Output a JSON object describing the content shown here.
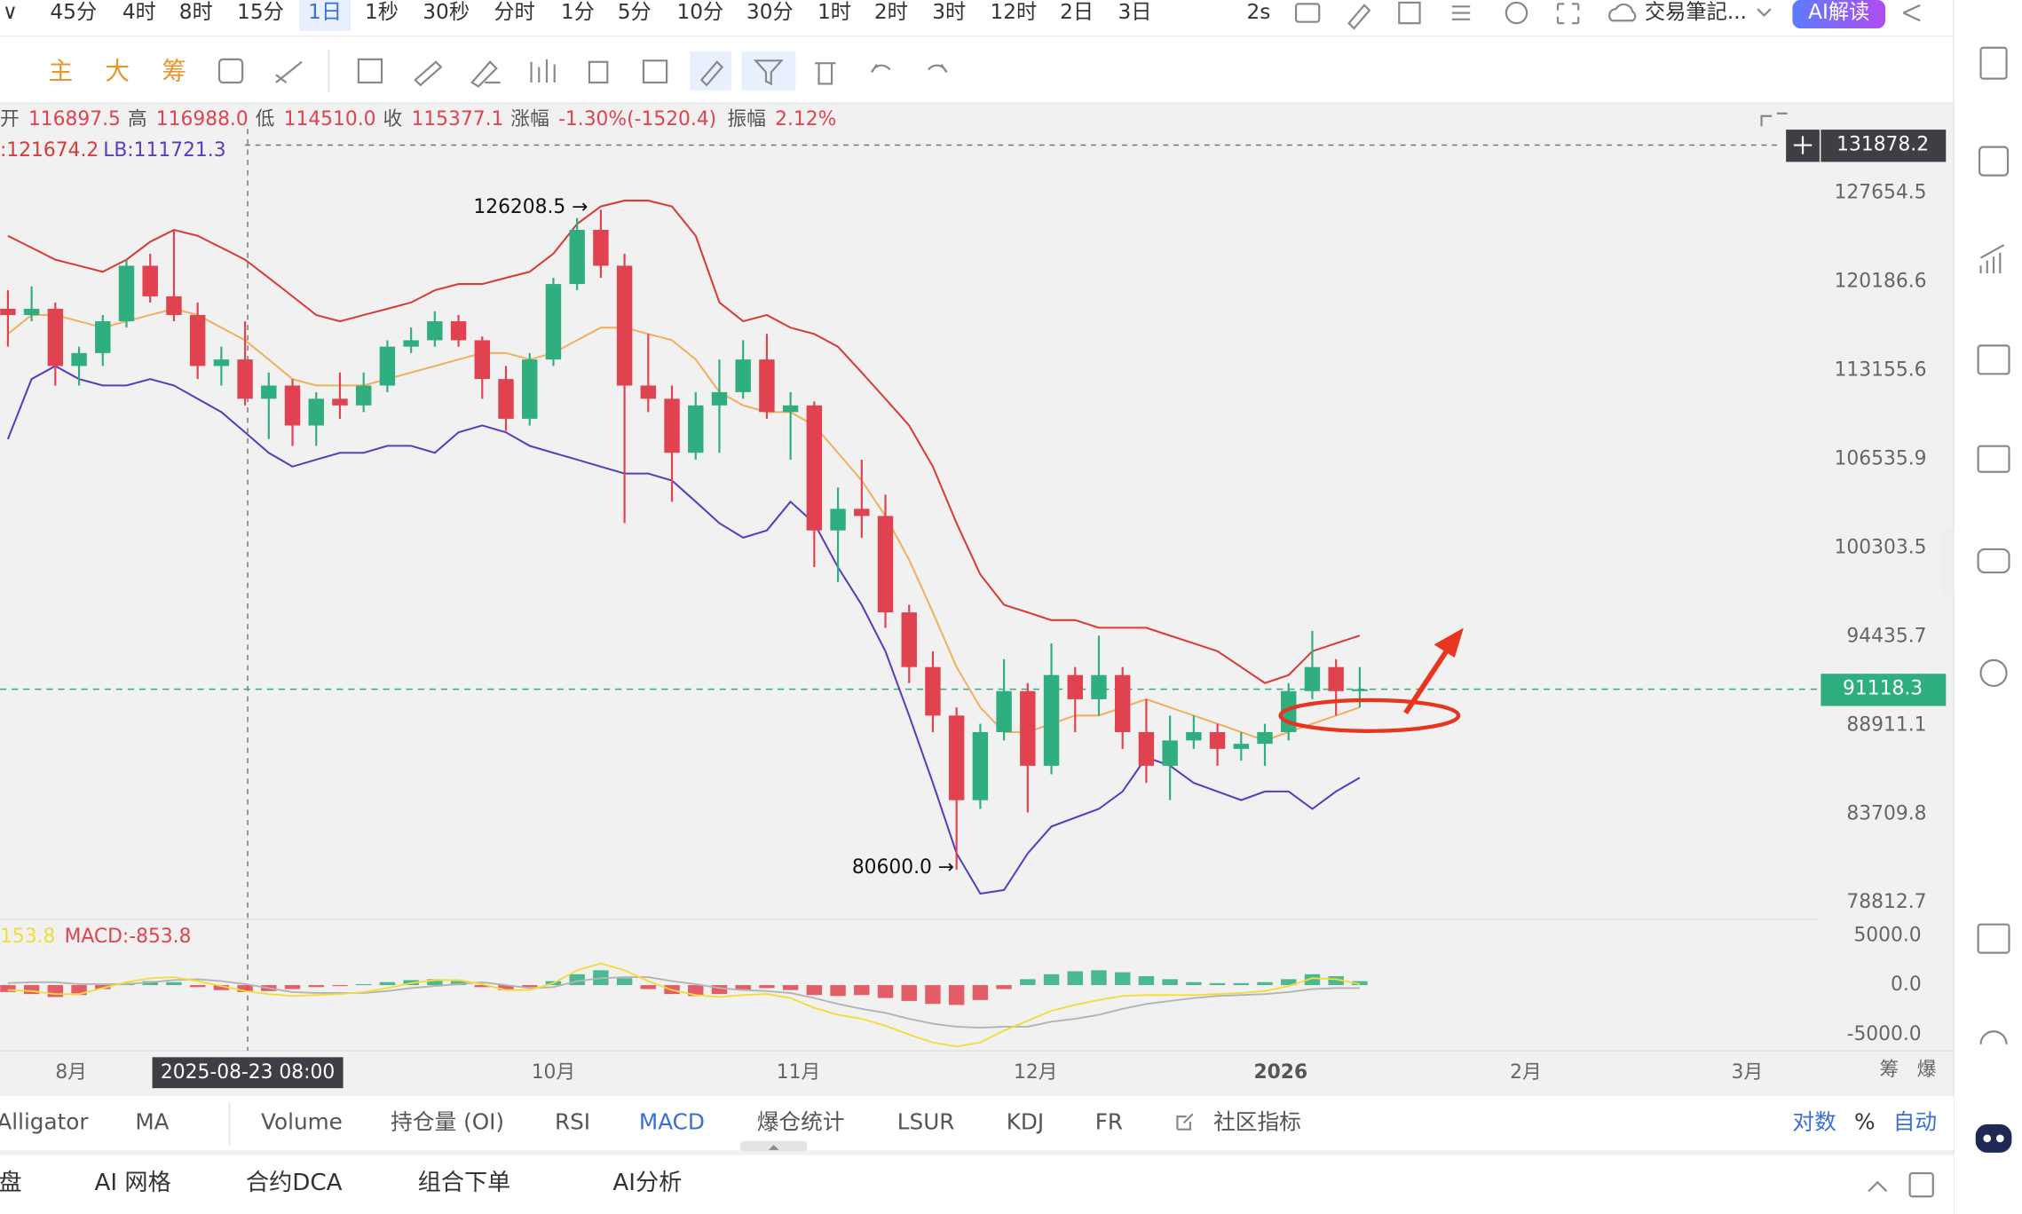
{
  "toolbar": {
    "intervals": [
      "45分",
      "4时",
      "8时",
      "15分",
      "1日",
      "1秒",
      "30秒",
      "分时",
      "1分",
      "5分",
      "10分",
      "30分",
      "1时",
      "2时",
      "3时",
      "12时",
      "2日",
      "3日"
    ],
    "refresh": "2s",
    "notes": "交易筆記...",
    "ai_button": "AI解读",
    "tools": [
      "主",
      "大",
      "筹"
    ]
  },
  "info": {
    "open_label": "开",
    "open": "116897.5",
    "high_label": "高",
    "high": "116988.0",
    "low_label": "低",
    "low": "114510.0",
    "close_label": "收",
    "close": "115377.1",
    "change_label": "涨幅",
    "change": "-1.30%(-1520.4)",
    "amp_label": "振幅",
    "amp": "2.12%",
    "ub": ":121674.2",
    "lb": "LB:111721.3"
  },
  "chart_data": {
    "type": "candlestick",
    "log_scale": true,
    "grid": false,
    "ylim": [
      78000,
      135100
    ],
    "yticks": [
      127654.5,
      120186.6,
      113155.6,
      106535.9,
      100303.5,
      94435.7,
      88911.1,
      83709.8,
      78812.7
    ],
    "xlim": [
      "2025-07-23",
      "2026-03-10"
    ],
    "xticks": [
      {
        "value": "2025-08-01",
        "label": "8月"
      },
      {
        "value": "2025-10-01",
        "label": "10月"
      },
      {
        "value": "2025-11-01",
        "label": "11月"
      },
      {
        "value": "2025-12-01",
        "label": "12月"
      },
      {
        "value": "2026-01-01",
        "label": "2026"
      },
      {
        "value": "2026-02-01",
        "label": "2月"
      },
      {
        "value": "2026-03-01",
        "label": "3月"
      }
    ],
    "up_color": "#2fae7f",
    "down_color": "#e0434f",
    "candles": {
      "x": [
        "2025-07-24",
        "2025-07-27",
        "2025-07-30",
        "2025-08-02",
        "2025-08-05",
        "2025-08-08",
        "2025-08-11",
        "2025-08-14",
        "2025-08-17",
        "2025-08-20",
        "2025-08-23",
        "2025-08-26",
        "2025-08-29",
        "2025-09-01",
        "2025-09-04",
        "2025-09-07",
        "2025-09-10",
        "2025-09-13",
        "2025-09-16",
        "2025-09-19",
        "2025-09-22",
        "2025-09-25",
        "2025-09-28",
        "2025-10-01",
        "2025-10-04",
        "2025-10-07",
        "2025-10-10",
        "2025-10-13",
        "2025-10-16",
        "2025-10-19",
        "2025-10-22",
        "2025-10-25",
        "2025-10-28",
        "2025-10-31",
        "2025-11-03",
        "2025-11-06",
        "2025-11-09",
        "2025-11-12",
        "2025-11-15",
        "2025-11-18",
        "2025-11-21",
        "2025-11-24",
        "2025-11-27",
        "2025-11-30",
        "2025-12-03",
        "2025-12-06",
        "2025-12-09",
        "2025-12-12",
        "2025-12-15",
        "2025-12-18",
        "2025-12-21",
        "2025-12-24",
        "2025-12-27",
        "2025-12-30",
        "2026-01-02",
        "2026-01-05",
        "2026-01-08",
        "2026-01-11"
      ],
      "open": [
        118000,
        117500,
        118000,
        113500,
        114500,
        117000,
        121500,
        119000,
        117500,
        113500,
        114000,
        111000,
        112000,
        109000,
        111000,
        110500,
        112000,
        115000,
        115500,
        117000,
        115500,
        112500,
        109500,
        114000,
        120000,
        124500,
        121500,
        112000,
        111000,
        107000,
        110500,
        111500,
        114000,
        110000,
        110500,
        101500,
        103000,
        102500,
        96000,
        92500,
        89500,
        84500,
        88500,
        91000,
        86500,
        92000,
        90500,
        92000,
        88500,
        86500,
        88000,
        88500,
        87500,
        87800,
        88500,
        91000,
        92500,
        91000
      ],
      "high": [
        119500,
        119800,
        118500,
        115000,
        117500,
        122000,
        122500,
        124400,
        118500,
        115000,
        117000,
        113000,
        112500,
        111500,
        113000,
        113000,
        115500,
        116500,
        117800,
        117500,
        115800,
        113500,
        114500,
        120500,
        125500,
        126208.5,
        122500,
        116000,
        112000,
        111500,
        114000,
        115500,
        116000,
        111500,
        110800,
        104500,
        106500,
        104000,
        96500,
        93500,
        90000,
        89000,
        93000,
        91500,
        94000,
        92500,
        94500,
        92500,
        90500,
        89500,
        89500,
        89000,
        88500,
        89000,
        91500,
        94800,
        93000,
        92500
      ],
      "low": [
        115000,
        117000,
        112000,
        112000,
        113500,
        116500,
        118500,
        117000,
        112500,
        112000,
        110500,
        108000,
        107500,
        107500,
        109500,
        110000,
        111500,
        114500,
        115000,
        115000,
        111000,
        108600,
        109000,
        113500,
        119500,
        120500,
        102000,
        110000,
        103500,
        106500,
        107000,
        111000,
        109500,
        106500,
        99000,
        98000,
        101000,
        95000,
        91500,
        88500,
        80600,
        84000,
        88000,
        83800,
        86000,
        88500,
        89500,
        87500,
        85500,
        84500,
        87500,
        86500,
        86800,
        86500,
        88000,
        90500,
        89500,
        90000
      ],
      "close": [
        117500,
        118000,
        113500,
        114500,
        117000,
        121500,
        119000,
        117500,
        113500,
        114000,
        111000,
        112000,
        109000,
        111000,
        110500,
        112000,
        115000,
        115500,
        117000,
        115500,
        112500,
        109500,
        114000,
        120000,
        124500,
        121500,
        112000,
        111000,
        107000,
        110500,
        111500,
        114000,
        110000,
        110500,
        101500,
        103000,
        102500,
        96000,
        92500,
        89500,
        84500,
        88500,
        91000,
        86500,
        92000,
        90500,
        92000,
        88500,
        86500,
        88000,
        88500,
        87500,
        87800,
        88500,
        91000,
        92500,
        91000,
        91118.3
      ]
    },
    "upper_band": {
      "color": "#d83a3a",
      "values": [
        124000,
        123000,
        122000,
        121500,
        121000,
        122000,
        123500,
        124500,
        124000,
        123000,
        122000,
        120500,
        119000,
        117500,
        117000,
        117500,
        118000,
        118500,
        119500,
        120000,
        120000,
        120500,
        121000,
        122500,
        125000,
        126500,
        127000,
        127000,
        126500,
        124000,
        118500,
        117000,
        117500,
        116500,
        116000,
        115000,
        113000,
        111000,
        109000,
        106000,
        102000,
        98500,
        96500,
        96000,
        95500,
        95500,
        95000,
        95000,
        95000,
        94500,
        94000,
        93500,
        92500,
        91500,
        92000,
        93500,
        94000,
        94500
      ]
    },
    "mid_band": {
      "color": "#f0b060",
      "values": [
        116000,
        117500,
        117500,
        117000,
        116500,
        117000,
        117500,
        118000,
        117500,
        116500,
        115500,
        114000,
        112500,
        112000,
        112000,
        112000,
        112500,
        113000,
        113500,
        114000,
        114500,
        114500,
        114000,
        114500,
        115500,
        116500,
        116500,
        116000,
        115500,
        114000,
        111500,
        110500,
        110000,
        110000,
        109000,
        107000,
        105000,
        102500,
        99500,
        96000,
        92500,
        90000,
        88500,
        88500,
        89000,
        89500,
        89500,
        90000,
        90500,
        90000,
        89500,
        89000,
        88500,
        88000,
        88500,
        89000,
        89500,
        90000
      ]
    },
    "lower_band": {
      "color": "#5a3cbc",
      "values": [
        108000,
        112500,
        113500,
        112500,
        112000,
        112000,
        112500,
        112000,
        111000,
        110000,
        108500,
        107000,
        106000,
        106500,
        107000,
        107000,
        107500,
        107500,
        107000,
        108500,
        109000,
        108500,
        107500,
        107000,
        106500,
        106000,
        105500,
        105500,
        105000,
        103500,
        102000,
        101000,
        101500,
        103500,
        102000,
        99000,
        96500,
        93500,
        89500,
        85500,
        81500,
        79300,
        79500,
        81500,
        83000,
        83500,
        84000,
        85000,
        87000,
        86500,
        85500,
        85000,
        84500,
        85000,
        85000,
        84000,
        85000,
        85800
      ]
    },
    "last_price": 91118.3,
    "last_color": "#2fae7f",
    "crosshair": {
      "time": "2025-08-23 08:00",
      "price": 131878.2
    },
    "annotations": {
      "high_label": "126208.5 →",
      "low_label": "80600.0 →"
    },
    "indicator": {
      "type": "macd",
      "labels": [
        "153.8",
        "MACD:-853.8"
      ],
      "ylim": [
        -6500,
        6000
      ],
      "yticks": [
        {
          "value": 5000,
          "label": "5000.0"
        },
        {
          "value": 0,
          "label": "0.0"
        },
        {
          "value": -5000,
          "label": "-5000.0"
        }
      ],
      "hist": [
        -700,
        -900,
        -1200,
        -1000,
        -400,
        200,
        400,
        300,
        -200,
        -500,
        -700,
        -600,
        -400,
        -200,
        -100,
        100,
        300,
        500,
        600,
        400,
        -200,
        -500,
        -200,
        400,
        1100,
        1500,
        700,
        -400,
        -900,
        -1100,
        -900,
        -500,
        -300,
        -500,
        -1000,
        -1100,
        -1000,
        -1300,
        -1600,
        -1900,
        -2000,
        -1500,
        -400,
        600,
        1100,
        1400,
        1500,
        1300,
        900,
        600,
        300,
        200,
        200,
        300,
        600,
        1100,
        900,
        400
      ],
      "dif": {
        "color": "#f2dc3c",
        "values": [
          -500,
          -600,
          -900,
          -900,
          -300,
          300,
          700,
          800,
          400,
          -100,
          -600,
          -900,
          -1100,
          -1000,
          -900,
          -700,
          -300,
          200,
          500,
          500,
          100,
          -500,
          -500,
          200,
          1500,
          2200,
          1500,
          400,
          -500,
          -1000,
          -1200,
          -1000,
          -900,
          -1300,
          -2300,
          -3000,
          -3400,
          -4100,
          -5000,
          -5800,
          -6200,
          -5800,
          -4600,
          -3600,
          -2600,
          -2000,
          -1500,
          -1100,
          -1000,
          -1000,
          -1000,
          -900,
          -800,
          -600,
          -100,
          700,
          600,
          100
        ]
      },
      "dea": {
        "color": "#b4b4b4",
        "values": [
          200,
          300,
          300,
          100,
          100,
          100,
          300,
          500,
          600,
          400,
          100,
          -300,
          -700,
          -800,
          -800,
          -800,
          -600,
          -300,
          -100,
          100,
          300,
          0,
          -300,
          -200,
          400,
          700,
          800,
          800,
          400,
          100,
          -300,
          -500,
          -600,
          -800,
          -1300,
          -1900,
          -2400,
          -2800,
          -3400,
          -3900,
          -4200,
          -4300,
          -4200,
          -4200,
          -3700,
          -3400,
          -3000,
          -2400,
          -1900,
          -1600,
          -1300,
          -1100,
          -1000,
          -900,
          -700,
          -400,
          -300,
          -300
        ]
      }
    }
  },
  "axis_extras": [
    "筹",
    "爆"
  ],
  "indicator_tabs": [
    "Alligator",
    "MA",
    "Volume",
    "持仓量 (OI)",
    "RSI",
    "MACD",
    "爆仓统计",
    "LSUR",
    "KDJ",
    "FR",
    "社区指标"
  ],
  "scale_options": [
    "对数",
    "%",
    "自动"
  ],
  "bottom_tabs": [
    "盘",
    "AI 网格",
    "合约DCA",
    "组合下单",
    "AI分析"
  ]
}
